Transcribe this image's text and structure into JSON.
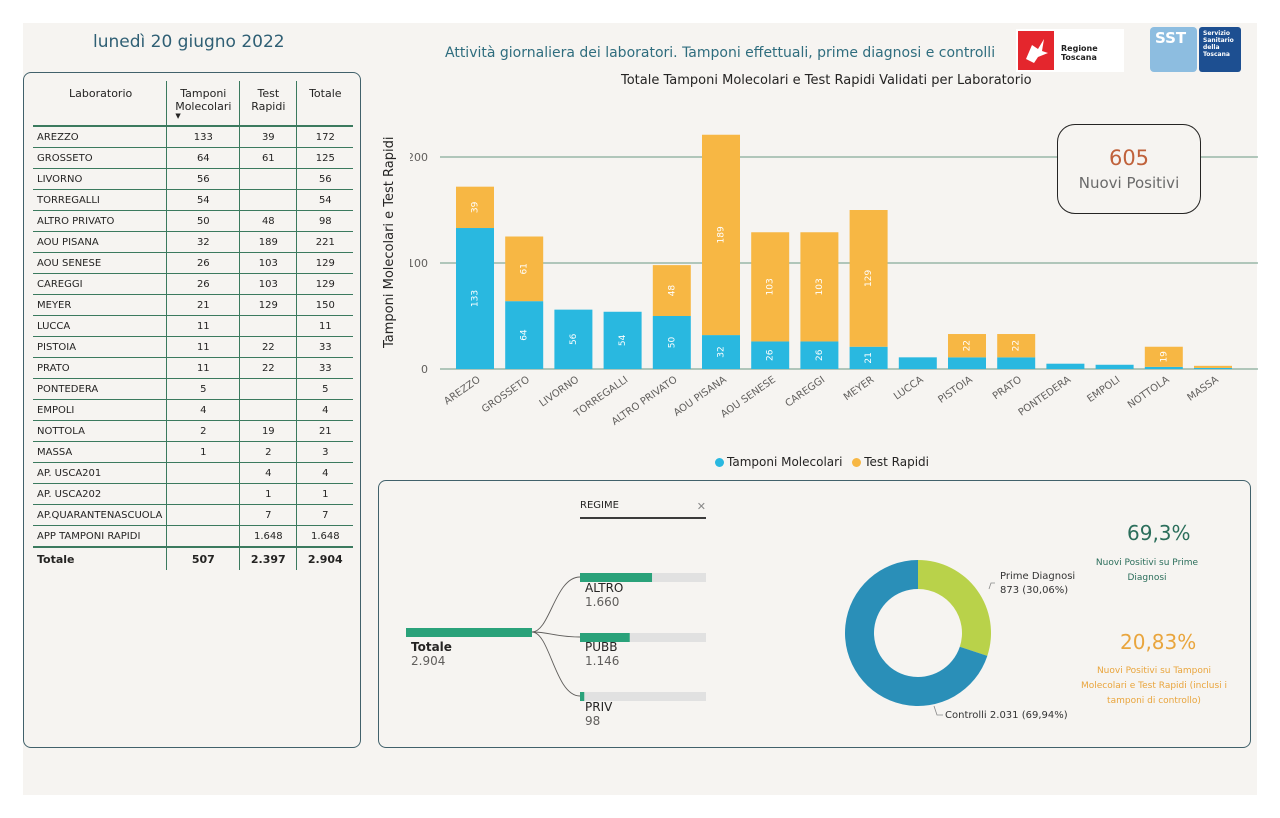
{
  "header": {
    "date": "lunedì 20 giugno 2022",
    "title": "Attività giornaliera dei laboratori. Tamponi effettuali, prime diagnosi e controlli",
    "logo_region": "Regione Toscana",
    "logo_sst_short": "SST",
    "logo_sst_long": "Servizio Sanitario della Toscana"
  },
  "table": {
    "headers": [
      "Laboratorio",
      "Tamponi Molecolari",
      "Test Rapidi",
      "Totale"
    ],
    "rows": [
      [
        "AREZZO",
        "133",
        "39",
        "172"
      ],
      [
        "GROSSETO",
        "64",
        "61",
        "125"
      ],
      [
        "LIVORNO",
        "56",
        "",
        "56"
      ],
      [
        "TORREGALLI",
        "54",
        "",
        "54"
      ],
      [
        "ALTRO PRIVATO",
        "50",
        "48",
        "98"
      ],
      [
        "AOU PISANA",
        "32",
        "189",
        "221"
      ],
      [
        "AOU SENESE",
        "26",
        "103",
        "129"
      ],
      [
        "CAREGGI",
        "26",
        "103",
        "129"
      ],
      [
        "MEYER",
        "21",
        "129",
        "150"
      ],
      [
        "LUCCA",
        "11",
        "",
        "11"
      ],
      [
        "PISTOIA",
        "11",
        "22",
        "33"
      ],
      [
        "PRATO",
        "11",
        "22",
        "33"
      ],
      [
        "PONTEDERA",
        "5",
        "",
        "5"
      ],
      [
        "EMPOLI",
        "4",
        "",
        "4"
      ],
      [
        "NOTTOLA",
        "2",
        "19",
        "21"
      ],
      [
        "MASSA",
        "1",
        "2",
        "3"
      ],
      [
        "AP. USCA201",
        "",
        "4",
        "4"
      ],
      [
        "AP. USCA202",
        "",
        "1",
        "1"
      ],
      [
        "AP.QUARANTENASCUOLA",
        "",
        "7",
        "7"
      ],
      [
        "APP TAMPONI RAPIDI",
        "",
        "1.648",
        "1.648"
      ]
    ],
    "total": [
      "Totale",
      "507",
      "2.397",
      "2.904"
    ]
  },
  "kpi": {
    "value": "605",
    "label": "Nuovi Positivi"
  },
  "chart_data": {
    "type": "bar",
    "title": "Totale Tamponi Molecolari e Test Rapidi Validati per Laboratorio",
    "ylabel": "Tamponi Molecolari e Test Rapidi",
    "ylim": [
      0,
      230
    ],
    "yticks": [
      0,
      100,
      200
    ],
    "categories": [
      "AREZZO",
      "GROSSETO",
      "LIVORNO",
      "TORREGALLI",
      "ALTRO PRIVATO",
      "AOU PISANA",
      "AOU SENESE",
      "CAREGGI",
      "MEYER",
      "LUCCA",
      "PISTOIA",
      "PRATO",
      "PONTEDERA",
      "EMPOLI",
      "NOTTOLA",
      "MASSA"
    ],
    "series": [
      {
        "name": "Tamponi Molecolari",
        "color": "#29b8e0",
        "values": [
          133,
          64,
          56,
          54,
          50,
          32,
          26,
          26,
          21,
          11,
          11,
          11,
          5,
          4,
          2,
          1
        ]
      },
      {
        "name": "Test Rapidi",
        "color": "#f7b744",
        "values": [
          39,
          61,
          0,
          0,
          48,
          189,
          103,
          103,
          129,
          0,
          22,
          22,
          0,
          0,
          19,
          2
        ]
      }
    ],
    "stacked": true,
    "legend": "bottom-center",
    "grid": true
  },
  "regime": {
    "label": "REGIME",
    "close_icon": "close-icon",
    "root": {
      "name": "Totale",
      "value": "2.904",
      "amount": 2904
    },
    "children": [
      {
        "name": "ALTRO",
        "value": "1.660",
        "amount": 1660
      },
      {
        "name": "PUBB",
        "value": "1.146",
        "amount": 1146
      },
      {
        "name": "PRIV",
        "value": "98",
        "amount": 98
      }
    ]
  },
  "donut": {
    "slices": [
      {
        "name": "Prime Diagnosi",
        "value": 873,
        "label": "873 (30,06%)",
        "color": "#b9d24a"
      },
      {
        "name": "Controlli",
        "value": 2031,
        "label": "2.031 (69,94%)",
        "color": "#2a8fb8"
      }
    ]
  },
  "stats": {
    "p1_value": "69,3%",
    "p1_label": "Nuovi Positivi su Prime Diagnosi",
    "p2_value": "20,83%",
    "p2_label": "Nuovi Positivi su Tamponi Molecolari e Test Rapidi (inclusi i tamponi di controllo)"
  }
}
